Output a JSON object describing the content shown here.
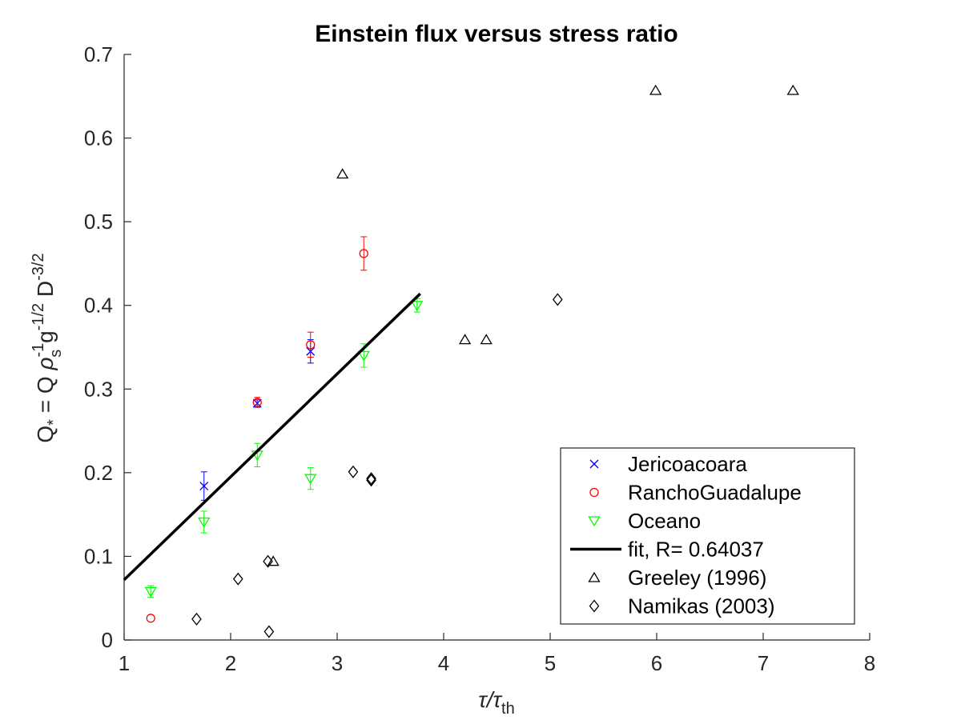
{
  "chart_data": {
    "type": "scatter",
    "title": "Einstein flux versus stress ratio",
    "xlabel": {
      "base": "τ/τ",
      "sub": "th"
    },
    "ylabel": {
      "p1": "Q",
      "sub1": "*",
      "p2": " = Q ",
      "rho": "ρ",
      "sup_rho": "-1",
      "sub_rho": "s",
      "p3": " g",
      "sup_g": "-1/2",
      "p4": " D",
      "sup_d": "-3/2"
    },
    "xlim": [
      1,
      8
    ],
    "ylim": [
      0,
      0.7
    ],
    "x_ticks": [
      1,
      2,
      3,
      4,
      5,
      6,
      7,
      8
    ],
    "y_ticks": [
      0,
      0.1,
      0.2,
      0.3,
      0.4,
      0.5,
      0.6,
      0.7
    ],
    "x_tick_labels": [
      "1",
      "2",
      "3",
      "4",
      "5",
      "6",
      "7",
      "8"
    ],
    "y_tick_labels": [
      "0",
      "0.1",
      "0.2",
      "0.3",
      "0.4",
      "0.5",
      "0.6",
      "0.7"
    ],
    "legend_position": "bottom-right",
    "series": [
      {
        "name": "Jericoacoara",
        "marker": "x",
        "color": "#0000ff",
        "points": [
          {
            "x": 1.75,
            "y": 0.184,
            "err": 0.017
          },
          {
            "x": 2.25,
            "y": 0.283,
            "err": 0.004
          },
          {
            "x": 2.75,
            "y": 0.345,
            "err": 0.014
          }
        ]
      },
      {
        "name": "RanchoGuadalupe",
        "marker": "circle",
        "color": "#ff0000",
        "points": [
          {
            "x": 1.25,
            "y": 0.026,
            "err": 0
          },
          {
            "x": 2.25,
            "y": 0.284,
            "err": 0.006
          },
          {
            "x": 2.75,
            "y": 0.353,
            "err": 0.015
          },
          {
            "x": 3.25,
            "y": 0.462,
            "err": 0.02
          }
        ]
      },
      {
        "name": "Oceano",
        "marker": "triangle-down",
        "color": "#00ff00",
        "points": [
          {
            "x": 1.25,
            "y": 0.058,
            "err": 0.007
          },
          {
            "x": 1.75,
            "y": 0.141,
            "err": 0.013
          },
          {
            "x": 2.25,
            "y": 0.221,
            "err": 0.014
          },
          {
            "x": 2.75,
            "y": 0.193,
            "err": 0.013
          },
          {
            "x": 3.25,
            "y": 0.34,
            "err": 0.014
          },
          {
            "x": 3.75,
            "y": 0.4,
            "err": 0.008
          }
        ]
      },
      {
        "name": "fit, R= 0.64037",
        "type": "line",
        "color": "#000000",
        "points": [
          {
            "x": 1.0,
            "y": 0.072
          },
          {
            "x": 3.78,
            "y": 0.414
          }
        ]
      },
      {
        "name": "Greeley (1996)",
        "marker": "triangle-up",
        "color": "#000000",
        "points": [
          {
            "x": 2.4,
            "y": 0.094
          },
          {
            "x": 3.05,
            "y": 0.557
          },
          {
            "x": 4.2,
            "y": 0.359
          },
          {
            "x": 4.4,
            "y": 0.359
          },
          {
            "x": 5.99,
            "y": 0.657
          },
          {
            "x": 7.28,
            "y": 0.657
          }
        ]
      },
      {
        "name": "Namikas (2003)",
        "marker": "diamond",
        "color": "#000000",
        "points": [
          {
            "x": 1.68,
            "y": 0.025
          },
          {
            "x": 2.07,
            "y": 0.073
          },
          {
            "x": 2.35,
            "y": 0.094
          },
          {
            "x": 2.36,
            "y": 0.01
          },
          {
            "x": 3.15,
            "y": 0.201
          },
          {
            "x": 3.32,
            "y": 0.193
          },
          {
            "x": 3.32,
            "y": 0.191
          },
          {
            "x": 5.07,
            "y": 0.407
          }
        ]
      }
    ]
  }
}
